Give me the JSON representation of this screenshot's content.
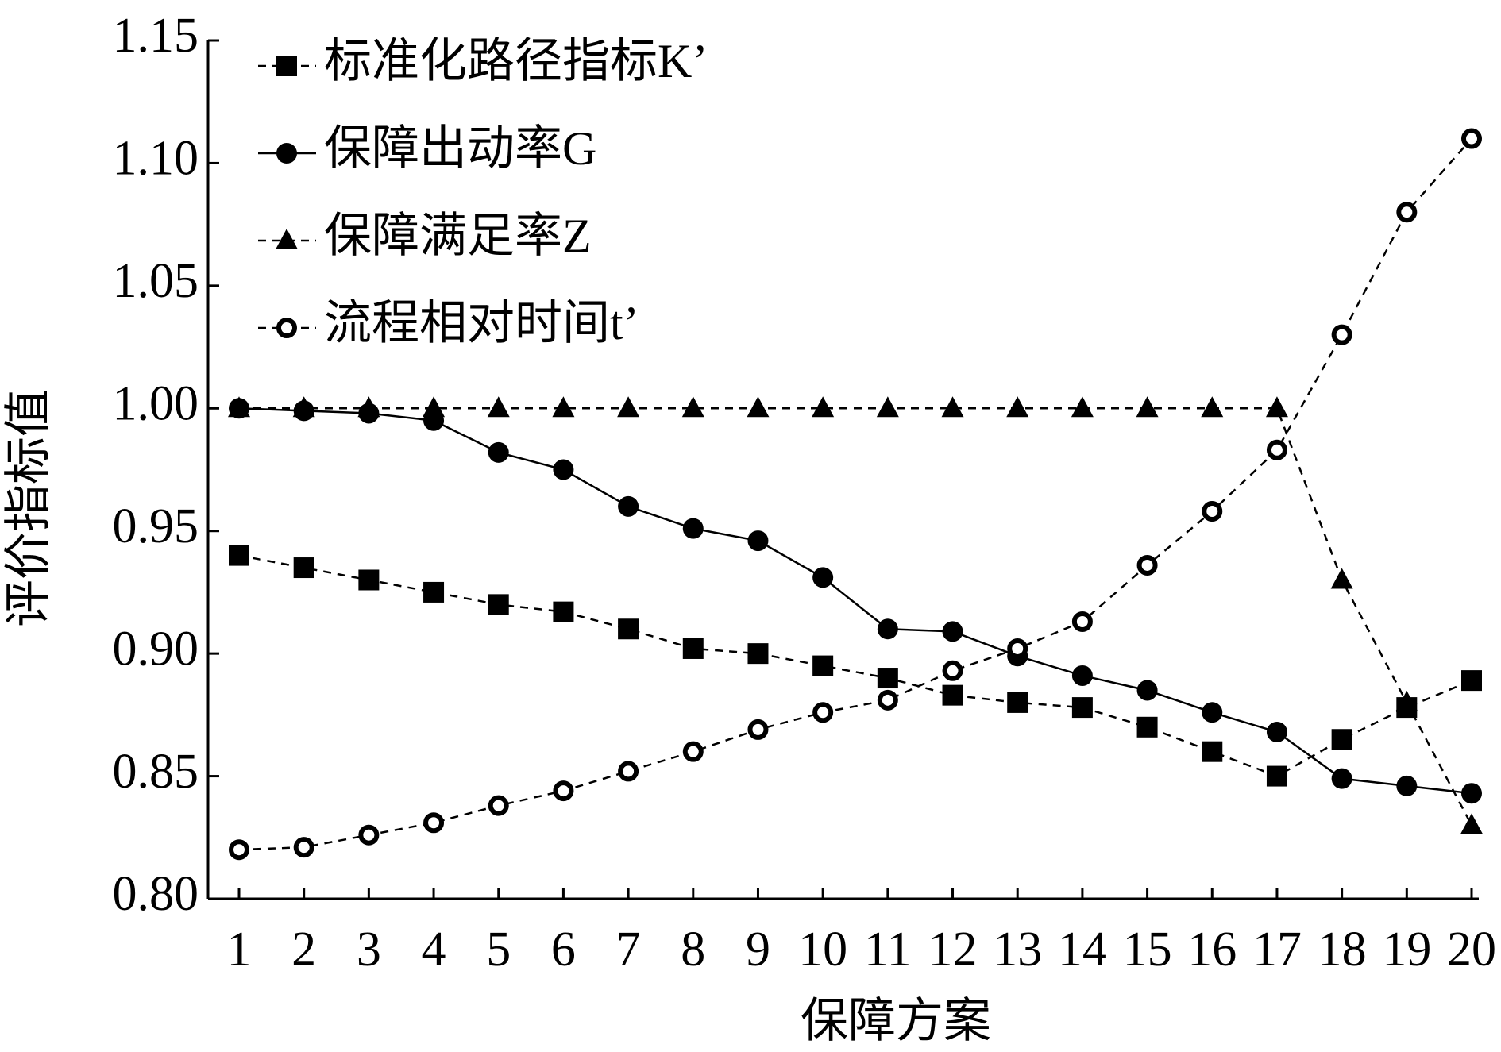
{
  "chart_data": {
    "type": "line",
    "x_label": "保障方案",
    "y_label": "评价指标值",
    "categories": [
      "1",
      "2",
      "3",
      "4",
      "5",
      "6",
      "7",
      "8",
      "9",
      "10",
      "11",
      "12",
      "13",
      "14",
      "15",
      "16",
      "17",
      "18",
      "19",
      "20"
    ],
    "series": [
      {
        "name": "标准化路径指标K’",
        "color": "#000000",
        "marker": "square",
        "line_style": "dashed",
        "values": [
          0.94,
          0.935,
          0.93,
          0.925,
          0.92,
          0.917,
          0.91,
          0.902,
          0.9,
          0.895,
          0.89,
          0.883,
          0.88,
          0.878,
          0.87,
          0.86,
          0.85,
          0.865,
          0.878,
          0.889
        ]
      },
      {
        "name": "保障出动率G",
        "color": "#000000",
        "marker": "circle",
        "line_style": "solid",
        "values": [
          1.0,
          0.999,
          0.998,
          0.995,
          0.982,
          0.975,
          0.96,
          0.951,
          0.946,
          0.931,
          0.91,
          0.909,
          0.899,
          0.891,
          0.885,
          0.876,
          0.868,
          0.849,
          0.846,
          0.843
        ]
      },
      {
        "name": "保障满足率Z",
        "color": "#000000",
        "marker": "triangle",
        "line_style": "dashed",
        "values": [
          1.0,
          1.0,
          1.0,
          1.0,
          1.0,
          1.0,
          1.0,
          1.0,
          1.0,
          1.0,
          1.0,
          1.0,
          1.0,
          1.0,
          1.0,
          1.0,
          1.0,
          0.93,
          0.88,
          0.83
        ]
      },
      {
        "name": "流程相对时间t’",
        "color": "#000000",
        "marker": "open-circle",
        "line_style": "dashed",
        "values": [
          0.82,
          0.821,
          0.826,
          0.831,
          0.838,
          0.844,
          0.852,
          0.86,
          0.869,
          0.876,
          0.881,
          0.893,
          0.902,
          0.913,
          0.936,
          0.958,
          0.983,
          1.03,
          1.08,
          1.11
        ]
      }
    ],
    "ylim": [
      0.8,
      1.15
    ],
    "yticks": [
      {
        "value": 0.8,
        "label": "0.80"
      },
      0.85,
      {
        "value": 0.9,
        "label": "0.90"
      },
      0.95,
      {
        "value": 1.0,
        "label": "1.00"
      },
      1.05,
      {
        "value": 1.1,
        "label": "1.10"
      },
      1.15
    ],
    "legend": "upper left"
  }
}
